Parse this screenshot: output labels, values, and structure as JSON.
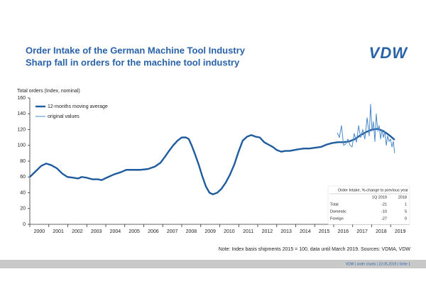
{
  "chart_data": {
    "type": "line",
    "title": "Order Intake of the German Machine Tool Industry",
    "subtitle": "Sharp fall in orders for the machine tool industry",
    "y_label": "Total orders (Index, nominal)",
    "xlim": [
      2000,
      2020
    ],
    "xticks": [
      2000,
      2001,
      2002,
      2003,
      2004,
      2005,
      2006,
      2007,
      2008,
      2009,
      2010,
      2011,
      2012,
      2013,
      2014,
      2015,
      2016,
      2017,
      2018,
      2019
    ],
    "ylim": [
      0,
      160
    ],
    "yticks": [
      0,
      20,
      40,
      60,
      80,
      100,
      120,
      140,
      160
    ],
    "legend": "top-left",
    "series": [
      {
        "name": "12-months moving average",
        "color": "#1f5c9e",
        "x": [
          2000.0,
          2000.3,
          2000.6,
          2000.86,
          2001.12,
          2001.42,
          2001.72,
          2001.98,
          2002.28,
          2002.54,
          2002.73,
          2002.99,
          2003.29,
          2003.59,
          2003.78,
          2004.04,
          2004.41,
          2004.79,
          2005.08,
          2005.46,
          2005.83,
          2006.21,
          2006.58,
          2006.88,
          2007.1,
          2007.33,
          2007.55,
          2007.78,
          2008.0,
          2008.22,
          2008.37,
          2008.52,
          2008.71,
          2008.9,
          2009.08,
          2009.27,
          2009.46,
          2009.64,
          2009.87,
          2010.09,
          2010.32,
          2010.54,
          2010.77,
          2010.99,
          2011.21,
          2011.44,
          2011.66,
          2011.89,
          2012.11,
          2012.34,
          2012.56,
          2012.79,
          2013.01,
          2013.23,
          2013.46,
          2013.68,
          2013.91,
          2014.13,
          2014.43,
          2014.73,
          2015.03,
          2015.33,
          2015.63,
          2015.93,
          2016.22,
          2016.52,
          2016.82,
          2017.12,
          2017.42,
          2017.72,
          2018.02,
          2018.32,
          2018.62,
          2018.92,
          2019.21
        ],
        "values": [
          60,
          67,
          74,
          77,
          75,
          71,
          64,
          60,
          59,
          58,
          60,
          59,
          57,
          57,
          56,
          59,
          63,
          66,
          69,
          69,
          69,
          70,
          73,
          78,
          85,
          93,
          100,
          106,
          110,
          110,
          108,
          100,
          88,
          75,
          61,
          48,
          40,
          38,
          40,
          45,
          53,
          63,
          76,
          92,
          106,
          111,
          113,
          111,
          110,
          104,
          101,
          98,
          94,
          92,
          93,
          93,
          94,
          95,
          96,
          96,
          97,
          98,
          101,
          103,
          104,
          104,
          105,
          108,
          113,
          117,
          120,
          121,
          118,
          113,
          107
        ]
      },
      {
        "name": "original values",
        "color": "#4a88c7",
        "x": [
          2016.19,
          2016.3,
          2016.41,
          2016.52,
          2016.64,
          2016.75,
          2016.86,
          2016.97,
          2017.08,
          2017.2,
          2017.31,
          2017.42,
          2017.53,
          2017.64,
          2017.76,
          2017.87,
          2017.94,
          2018.02,
          2018.09,
          2018.17,
          2018.24,
          2018.32,
          2018.39,
          2018.47,
          2018.54,
          2018.62,
          2018.69,
          2018.77,
          2018.84,
          2018.92,
          2018.99,
          2019.07,
          2019.14,
          2019.21
        ],
        "values": [
          116,
          110,
          125,
          100,
          102,
          108,
          100,
          98,
          115,
          104,
          125,
          110,
          120,
          108,
          135,
          112,
          152,
          118,
          130,
          105,
          140,
          118,
          125,
          108,
          120,
          110,
          118,
          100,
          112,
          105,
          108,
          98,
          105,
          90
        ]
      }
    ],
    "note": "Note: Index basis shipments  2015 = 100, data until March 2019. Sources: VDMA, VDW"
  },
  "table": {
    "title": "Order Intake, %-change to previous year",
    "columns": [
      "1Q 2019",
      "2018"
    ],
    "rows": [
      [
        "Total",
        "-21",
        "1"
      ],
      [
        "Domestic",
        "-10",
        "5"
      ],
      [
        "Foreign",
        "-27",
        "0"
      ]
    ]
  },
  "logo": "VDW",
  "footer": "VDW  |  order charts  |  22.05.2019  |  Seite  1"
}
